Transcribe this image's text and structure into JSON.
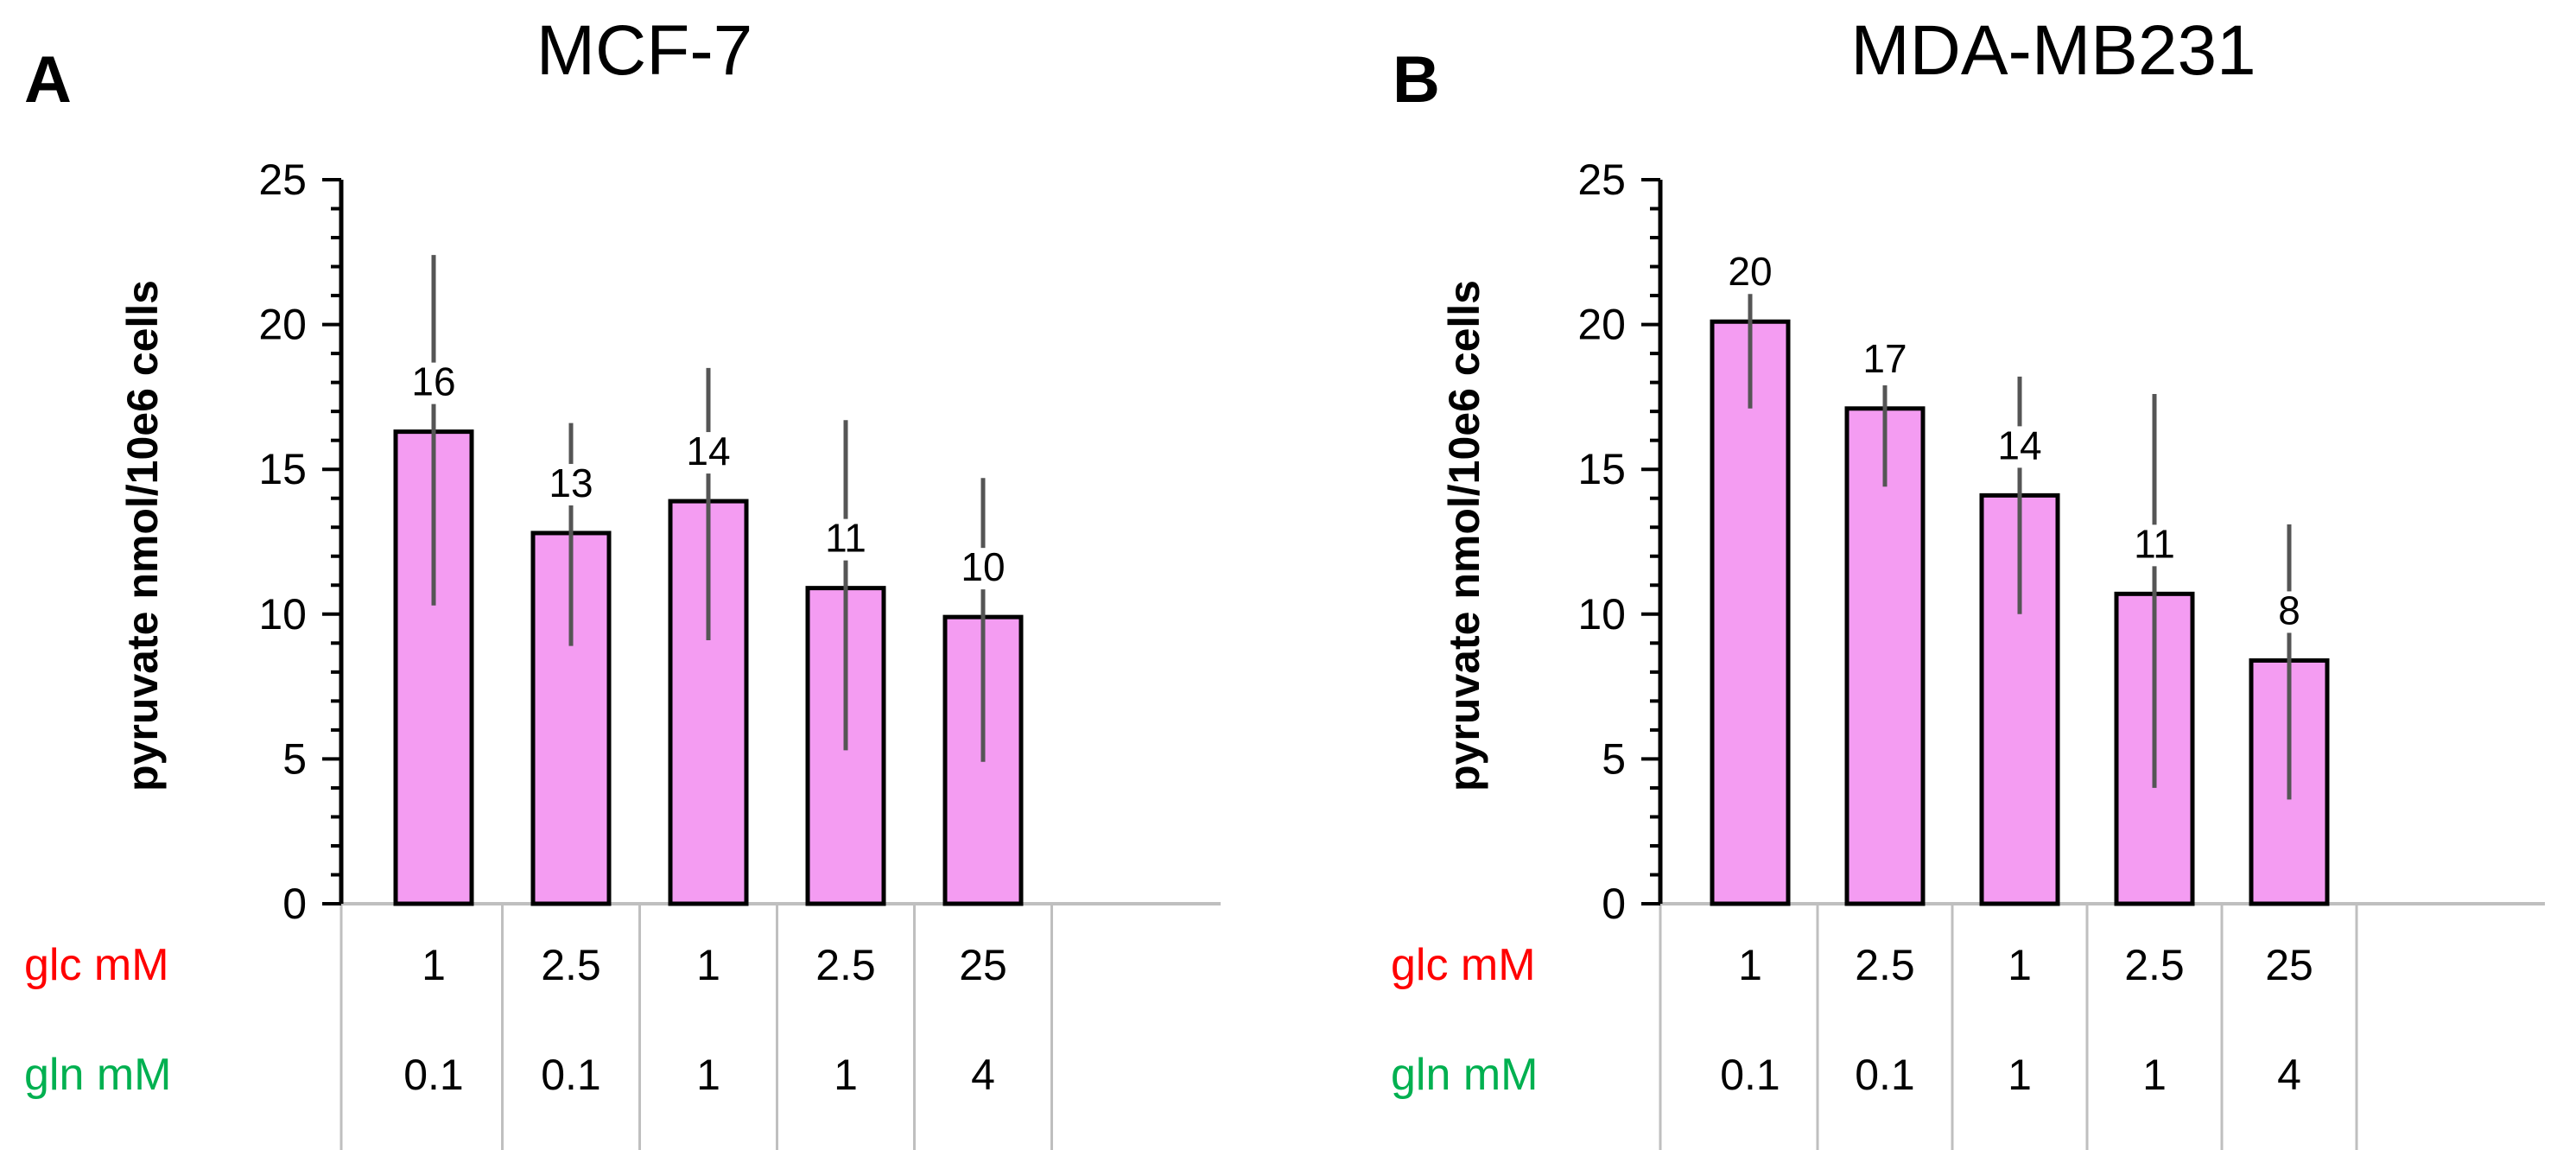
{
  "colors": {
    "bar_fill": "#f49cf2",
    "bar_stroke": "#000000",
    "error_bar": "#555555",
    "axis": "#000000",
    "grid_line": "#bfbfbf",
    "glc_label": "#ff0000",
    "gln_label": "#00b050"
  },
  "chart_data": [
    {
      "panel_letter": "A",
      "type": "bar",
      "title": "MCF-7",
      "ylabel": "pyruvate nmol/10e6 cells",
      "xlabel": "",
      "ylim": [
        0,
        25
      ],
      "yticks": [
        "0",
        "5",
        "10",
        "15",
        "20",
        "25"
      ],
      "categories": [
        "1 / 0.1",
        "2.5 / 0.1",
        "1 / 1",
        "2.5 / 1",
        "25 / 4"
      ],
      "values": [
        16.3,
        12.8,
        13.9,
        10.9,
        9.9
      ],
      "data_labels": [
        "16",
        "13",
        "14",
        "11",
        "10"
      ],
      "error_high": [
        22.4,
        16.6,
        18.5,
        16.7,
        14.7
      ],
      "error_low": [
        10.3,
        8.9,
        9.1,
        5.3,
        4.9
      ],
      "table_rows": [
        {
          "label": "glc mM",
          "values": [
            "1",
            "2.5",
            "1",
            "2.5",
            "25"
          ]
        },
        {
          "label": "gln mM",
          "values": [
            "0.1",
            "0.1",
            "1",
            "1",
            "4"
          ]
        }
      ]
    },
    {
      "panel_letter": "B",
      "type": "bar",
      "title": "MDA-MB231",
      "ylabel": "pyruvate nmol/10e6 cells",
      "xlabel": "",
      "ylim": [
        0,
        25
      ],
      "yticks": [
        "0",
        "5",
        "10",
        "15",
        "20",
        "25"
      ],
      "categories": [
        "1 / 0.1",
        "2.5 / 0.1",
        "1 / 1",
        "2.5 / 1",
        "25 / 4"
      ],
      "values": [
        20.1,
        17.1,
        14.1,
        10.7,
        8.4
      ],
      "data_labels": [
        "20",
        "17",
        "14",
        "11",
        "8"
      ],
      "error_high": [
        21.1,
        17.9,
        18.2,
        17.6,
        13.1
      ],
      "error_low": [
        17.1,
        14.4,
        10.0,
        4.0,
        3.6
      ],
      "table_rows": [
        {
          "label": "glc mM",
          "values": [
            "1",
            "2.5",
            "1",
            "2.5",
            "25"
          ]
        },
        {
          "label": "gln mM",
          "values": [
            "0.1",
            "0.1",
            "1",
            "1",
            "4"
          ]
        }
      ]
    }
  ]
}
